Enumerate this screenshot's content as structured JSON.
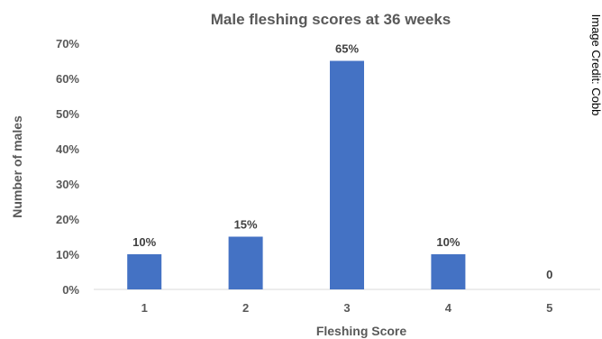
{
  "chart_data": {
    "type": "bar",
    "title": "Male fleshing scores at 36 weeks",
    "xlabel": "Fleshing Score",
    "ylabel": "Number of males",
    "categories": [
      "1",
      "2",
      "3",
      "4",
      "5"
    ],
    "values": [
      10,
      15,
      65,
      10,
      0
    ],
    "data_labels": [
      "10%",
      "15%",
      "65%",
      "10%",
      "0"
    ],
    "y_ticks": [
      "0%",
      "10%",
      "20%",
      "30%",
      "40%",
      "50%",
      "60%",
      "70%"
    ],
    "ylim": [
      0,
      70
    ],
    "grid": false,
    "legend": "none",
    "bar_color": "#4472c4"
  },
  "credit": "Image Credit: Cobb"
}
